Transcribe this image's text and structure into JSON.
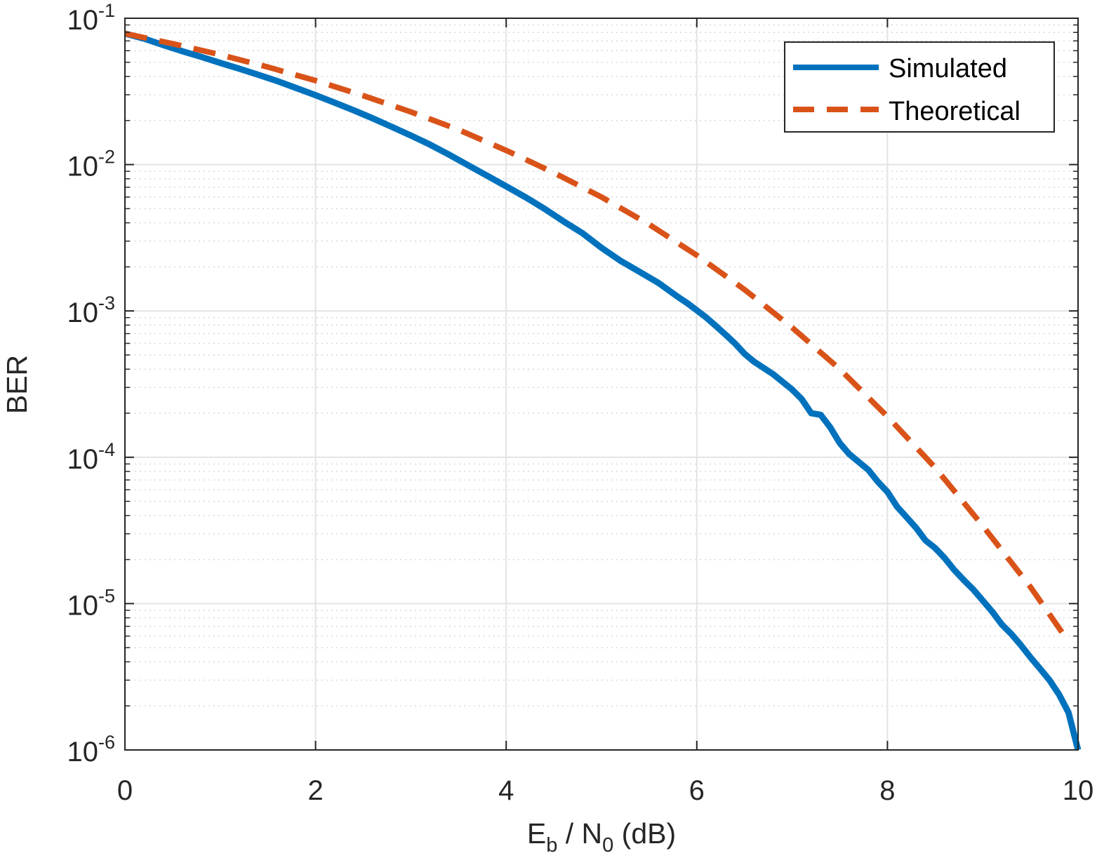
{
  "chart_data": {
    "type": "line",
    "xlabel": "E_b / N_0 (dB)",
    "xlabel_parts": {
      "e": "E",
      "e_sub": "b",
      "sep": " / N",
      "n_sub": "0",
      "unit": " (dB)"
    },
    "ylabel": "BER",
    "xlim": [
      0,
      10
    ],
    "ylim": [
      1e-06,
      0.1
    ],
    "yscale": "log",
    "grid": true,
    "minor_grid": true,
    "legend_position": "top-right",
    "x_ticks": [
      {
        "value": 0,
        "label": "0"
      },
      {
        "value": 2,
        "label": "2"
      },
      {
        "value": 4,
        "label": "4"
      },
      {
        "value": 6,
        "label": "6"
      },
      {
        "value": 8,
        "label": "8"
      },
      {
        "value": 10,
        "label": "10"
      }
    ],
    "y_ticks": [
      {
        "value": 0.1,
        "base": "10",
        "exp": "-1"
      },
      {
        "value": 0.01,
        "base": "10",
        "exp": "-2"
      },
      {
        "value": 0.001,
        "base": "10",
        "exp": "-3"
      },
      {
        "value": 0.0001,
        "base": "10",
        "exp": "-4"
      },
      {
        "value": 1e-05,
        "base": "10",
        "exp": "-5"
      },
      {
        "value": 1e-06,
        "base": "10",
        "exp": "-6"
      }
    ],
    "series": [
      {
        "name": "Simulated",
        "color": "#0072bd",
        "style": "solid",
        "x": [
          0,
          0.2,
          0.4,
          0.6,
          0.8,
          1.0,
          1.2,
          1.4,
          1.6,
          1.8,
          2.0,
          2.2,
          2.4,
          2.6,
          2.8,
          3.0,
          3.2,
          3.4,
          3.6,
          3.8,
          4.0,
          4.2,
          4.4,
          4.6,
          4.8,
          5.0,
          5.2,
          5.4,
          5.6,
          5.8,
          5.9,
          6.0,
          6.1,
          6.2,
          6.3,
          6.4,
          6.5,
          6.6,
          6.8,
          7.0,
          7.1,
          7.2,
          7.3,
          7.4,
          7.5,
          7.6,
          7.8,
          7.9,
          8.0,
          8.1,
          8.2,
          8.3,
          8.4,
          8.5,
          8.6,
          8.7,
          8.8,
          8.9,
          9.0,
          9.1,
          9.2,
          9.3,
          9.4,
          9.5,
          9.6,
          9.7,
          9.8,
          9.9,
          10.0
        ],
        "values": [
          0.0786,
          0.0726,
          0.0657,
          0.0596,
          0.0545,
          0.0495,
          0.0452,
          0.0411,
          0.0372,
          0.0333,
          0.0298,
          0.0265,
          0.0235,
          0.0207,
          0.0181,
          0.0158,
          0.0137,
          0.0117,
          0.0099,
          0.0084,
          0.0071,
          0.006,
          0.005,
          0.0041,
          0.0034,
          0.0027,
          0.0022,
          0.00185,
          0.00155,
          0.00125,
          0.00113,
          0.00101,
          0.0009,
          0.00079,
          0.00069,
          0.0006,
          0.00051,
          0.00045,
          0.00037,
          0.00029,
          0.00025,
          0.0002,
          0.000195,
          0.00016,
          0.000125,
          0.000105,
          8.2e-05,
          6.8e-05,
          5.8e-05,
          4.6e-05,
          3.9e-05,
          3.3e-05,
          2.7e-05,
          2.4e-05,
          2.05e-05,
          1.7e-05,
          1.45e-05,
          1.25e-05,
          1.05e-05,
          8.8e-06,
          7.2e-06,
          6.2e-06,
          5.2e-06,
          4.3e-06,
          3.6e-06,
          3e-06,
          2.4e-06,
          1.8e-06,
          1e-06
        ]
      },
      {
        "name": "Theoretical",
        "color": "#d95319",
        "style": "dashed",
        "x": [
          0,
          0.5,
          1.0,
          1.5,
          2.0,
          2.5,
          3.0,
          3.5,
          4.0,
          4.5,
          5.0,
          5.5,
          6.0,
          6.5,
          7.0,
          7.5,
          8.0,
          8.5,
          9.0,
          9.5,
          9.9
        ],
        "values": [
          0.0786,
          0.067,
          0.0563,
          0.0464,
          0.0375,
          0.0296,
          0.0229,
          0.0173,
          0.0125,
          0.0088,
          0.006,
          0.0039,
          0.0024,
          0.0014,
          0.00077,
          0.0004,
          0.00019,
          8.5e-05,
          3.4e-05,
          1.3e-05,
          5.5e-06
        ]
      }
    ]
  }
}
